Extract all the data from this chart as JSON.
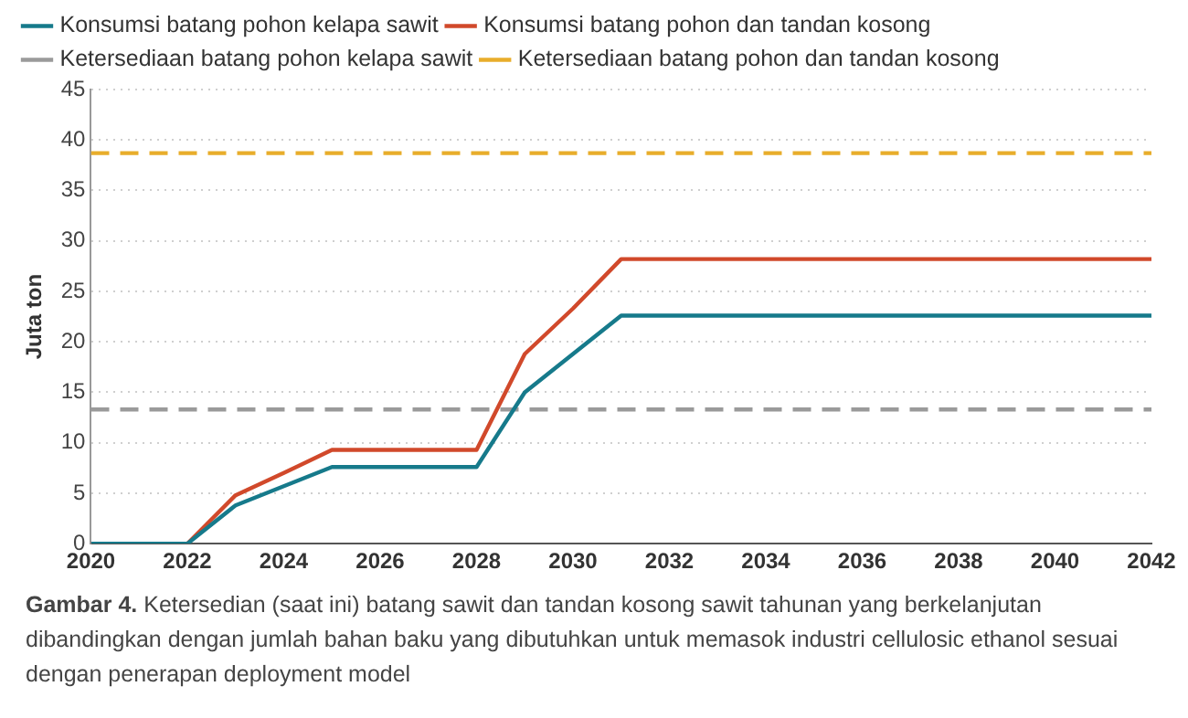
{
  "chart_data": {
    "type": "line",
    "ylabel": "Juta ton",
    "x": [
      2020,
      2021,
      2022,
      2023,
      2024,
      2025,
      2026,
      2027,
      2028,
      2029,
      2030,
      2031,
      2032,
      2033,
      2034,
      2035,
      2036,
      2037,
      2038,
      2039,
      2040,
      2041,
      2042
    ],
    "series": [
      {
        "name": "Konsumsi batang pohon kelapa sawit",
        "color": "#167a8b",
        "line_style": "solid",
        "values": [
          0,
          0,
          0,
          3.8,
          5.7,
          7.6,
          7.6,
          7.6,
          7.6,
          15,
          18.8,
          22.6,
          22.6,
          22.6,
          22.6,
          22.6,
          22.6,
          22.6,
          22.6,
          22.6,
          22.6,
          22.6,
          22.6
        ]
      },
      {
        "name": "Konsumsi batang pohon dan tandan kosong",
        "color": "#d1492b",
        "line_style": "solid",
        "values": [
          0,
          0,
          0,
          4.8,
          7,
          9.3,
          9.3,
          9.3,
          9.3,
          18.8,
          23.3,
          28.2,
          28.2,
          28.2,
          28.2,
          28.2,
          28.2,
          28.2,
          28.2,
          28.2,
          28.2,
          28.2,
          28.2
        ]
      },
      {
        "name": "Ketersediaan batang pohon kelapa sawit",
        "color": "#9a9a9a",
        "line_style": "dashed",
        "values": [
          13.3,
          13.3,
          13.3,
          13.3,
          13.3,
          13.3,
          13.3,
          13.3,
          13.3,
          13.3,
          13.3,
          13.3,
          13.3,
          13.3,
          13.3,
          13.3,
          13.3,
          13.3,
          13.3,
          13.3,
          13.3,
          13.3,
          13.3
        ]
      },
      {
        "name": "Ketersediaan batang pohon dan tandan kosong",
        "color": "#e8ad2b",
        "line_style": "dashed",
        "values": [
          38.7,
          38.7,
          38.7,
          38.7,
          38.7,
          38.7,
          38.7,
          38.7,
          38.7,
          38.7,
          38.7,
          38.7,
          38.7,
          38.7,
          38.7,
          38.7,
          38.7,
          38.7,
          38.7,
          38.7,
          38.7,
          38.7,
          38.7
        ]
      }
    ],
    "xlim": [
      2020,
      2042
    ],
    "xticks": [
      2020,
      2022,
      2024,
      2026,
      2028,
      2030,
      2032,
      2034,
      2036,
      2038,
      2040,
      2042
    ],
    "ylim": [
      0,
      45
    ],
    "yticks": [
      0,
      5,
      10,
      15,
      20,
      25,
      30,
      35,
      40,
      45
    ],
    "grid": "y",
    "legend": "top",
    "marker": "none",
    "annotations": [
      "Gambar 4. Ketersedian (saat ini) batang sawit dan tandan kosong sawit tahunan yang berkelanjutan dibandingkan dengan jumlah bahan baku yang dibutuhkan untuk memasok industri cellulosic ethanol sesuai dengan penerapan deployment model"
    ]
  }
}
